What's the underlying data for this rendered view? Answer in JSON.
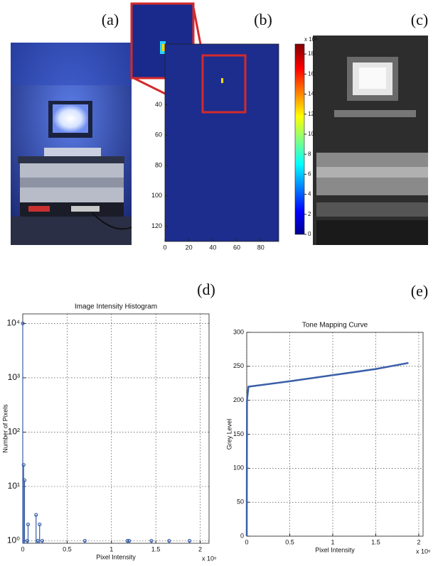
{
  "panel_labels": [
    "(a)",
    "(b)",
    "(c)",
    "(d)",
    "(e)"
  ],
  "chart_data": [
    {
      "type": "heatmap",
      "y_reversed": true,
      "xlim": [
        0,
        95
      ],
      "ylim": [
        0,
        130
      ],
      "xticks": [
        0,
        20,
        40,
        60,
        80
      ],
      "yticks": [
        40,
        60,
        80,
        100,
        120
      ],
      "colorbar": {
        "lim": [
          0,
          19
        ],
        "ticks": [
          0,
          2,
          4,
          6,
          8,
          10,
          12,
          14,
          16,
          18
        ],
        "label": "x 10⁵"
      }
    },
    {
      "type": "stem",
      "title": "Image Intensity Histogram",
      "xlabel": "Pixel Intensity",
      "ylabel": "Number of Pixels",
      "x_exponent": "x 10⁶",
      "log_y": true,
      "grid": true,
      "color": "#3a5fa8",
      "xlim": [
        0,
        2.1
      ],
      "ylim": [
        0.9,
        15000
      ],
      "xticks": [
        0,
        0.5,
        1,
        1.5,
        2
      ],
      "yticks": [
        {
          "value": 1,
          "label": "10⁰"
        },
        {
          "value": 10,
          "label": "10¹"
        },
        {
          "value": 100,
          "label": "10²"
        },
        {
          "value": 1000,
          "label": "10³"
        },
        {
          "value": 10000,
          "label": "10⁴"
        }
      ],
      "x": [
        0.0,
        0.01,
        0.02,
        0.05,
        0.06,
        0.15,
        0.17,
        0.19,
        0.22,
        0.7,
        1.18,
        1.2,
        1.45,
        1.65,
        1.88
      ],
      "values": [
        10000,
        25,
        13,
        1,
        2,
        3,
        1,
        2,
        1,
        1,
        1,
        1,
        1,
        1,
        1
      ]
    },
    {
      "type": "line",
      "title": "Tone Mapping Curve",
      "xlabel": "Pixel Intensity",
      "ylabel": "Grey Level",
      "x_exponent": "x 10⁶",
      "grid": true,
      "color": "#3a5fa8",
      "xlim": [
        0,
        2.05
      ],
      "ylim": [
        0,
        300
      ],
      "xticks": [
        0,
        0.5,
        1,
        1.5,
        2
      ],
      "yticks": [
        0,
        50,
        100,
        150,
        200,
        250,
        300
      ],
      "x": [
        0,
        0.003,
        0.02,
        0.5,
        1,
        1.5,
        1.88
      ],
      "values": [
        0,
        200,
        220,
        228,
        237,
        246,
        255
      ]
    }
  ]
}
